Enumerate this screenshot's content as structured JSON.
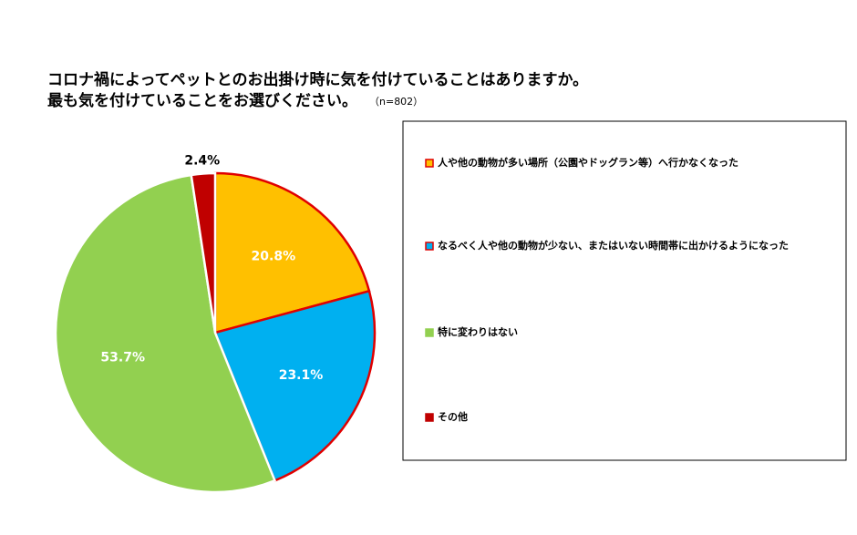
{
  "chart_data": {
    "type": "pie",
    "title": [
      "コロナ禍によってペットとのお出掛け時に気を付けていることはありますか。",
      "最も気を付けていることをお選びください。"
    ],
    "subtitle": "（n=802）",
    "categories": [
      "人や他の動物が多い場所（公園やドッグラン等）へ行かなくなった",
      "なるべく人や他の動物が少ない、またはいない時間帯に出かけるようになった",
      "特に変わりはない",
      "その他"
    ],
    "values": [
      20.8,
      23.1,
      53.7,
      2.4
    ],
    "value_labels": [
      "20.8%",
      "23.1%",
      "53.7%",
      "2.4%"
    ],
    "colors": [
      "#ffc000",
      "#00b0f0",
      "#92d050",
      "#c00000"
    ],
    "edgecolors": [
      "#e00000",
      "#e00000",
      "#ffffff",
      "#ffffff"
    ],
    "legend": "right"
  }
}
